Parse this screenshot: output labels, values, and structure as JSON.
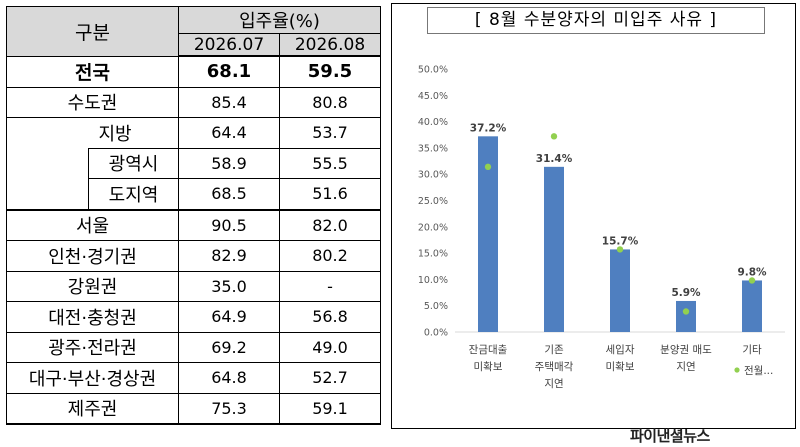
{
  "table": {
    "col_header_label": "구분",
    "rate_header": "입주율(%)",
    "period_1": "2026.07",
    "period_2": "2026.08",
    "rows": [
      {
        "label": "전국",
        "v1": "68.1",
        "v2": "59.5"
      },
      {
        "label": "수도권",
        "v1": "85.4",
        "v2": "80.8"
      },
      {
        "label": "지방",
        "v1": "64.4",
        "v2": "53.7"
      },
      {
        "label": "광역시",
        "v1": "58.9",
        "v2": "55.5"
      },
      {
        "label": "도지역",
        "v1": "68.5",
        "v2": "51.6"
      },
      {
        "label": "서울",
        "v1": "90.5",
        "v2": "82.0"
      },
      {
        "label": "인천·경기권",
        "v1": "82.9",
        "v2": "80.2"
      },
      {
        "label": "강원권",
        "v1": "35.0",
        "v2": "-"
      },
      {
        "label": "대전·충청권",
        "v1": "64.9",
        "v2": "56.8"
      },
      {
        "label": "광주·전라권",
        "v1": "69.2",
        "v2": "49.0"
      },
      {
        "label": "대구·부산·경상권",
        "v1": "64.8",
        "v2": "52.7"
      },
      {
        "label": "제주권",
        "v1": "75.3",
        "v2": "59.1"
      }
    ]
  },
  "chart_data": {
    "type": "bar",
    "title": "[ 8월 수분양자의 미입주 사유 ]",
    "categories": [
      [
        "잔금대출",
        "미확보"
      ],
      [
        "기존",
        "주택매각",
        "지연"
      ],
      [
        "세입자",
        "미확보"
      ],
      [
        "분양권 매도",
        "지연"
      ],
      [
        "기타"
      ]
    ],
    "series": [
      {
        "name": "",
        "type": "bar",
        "color": "#4f7fc0",
        "values": [
          37.2,
          31.4,
          15.7,
          5.9,
          9.8
        ],
        "labels": [
          "37.2%",
          "31.4%",
          "15.7%",
          "5.9%",
          "9.8%"
        ]
      },
      {
        "name": "전월...",
        "type": "scatter",
        "color": "#92d050",
        "values": [
          31.4,
          37.2,
          15.7,
          3.9,
          9.8
        ]
      }
    ],
    "ylim": [
      0,
      50
    ],
    "yticks": [
      "0.0%",
      "5.0%",
      "10.0%",
      "15.0%",
      "20.0%",
      "25.0%",
      "30.0%",
      "35.0%",
      "40.0%",
      "45.0%",
      "50.0%"
    ],
    "grid": false,
    "legend": "bottom-right"
  },
  "watermark": "파이낸셜뉴스"
}
